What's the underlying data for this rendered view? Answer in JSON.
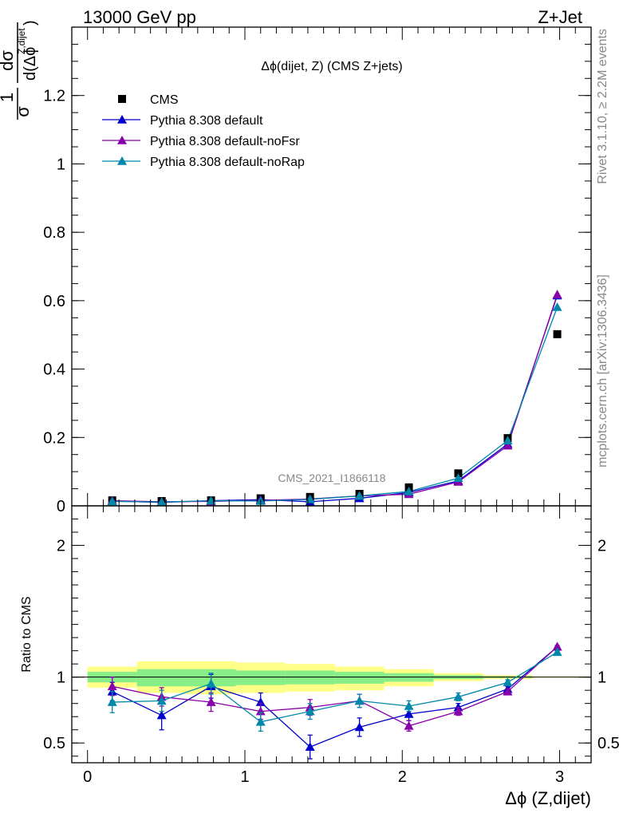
{
  "header": {
    "left": "13000 GeV pp",
    "right": "Z+Jet"
  },
  "side_labels": {
    "rivet": "Rivet 3.1.10, ≥ 2.2M events",
    "mcplots": "mcplots.cern.ch [arXiv:1306.3436]"
  },
  "watermark": "CMS_2021_I1866118",
  "chart_data": [
    {
      "type": "line",
      "title": "Δϕ(dijet, Z) (CMS Z+jets)",
      "xlabel": "Δϕ (Z,dijet)",
      "ylabel": "1/σ dσ/d(Δϕ Z,dijet)",
      "ylabel_parts": {
        "frac_num": "1",
        "frac_den": "σ",
        "deriv_num": "dσ",
        "deriv_den": "d(Δϕ",
        "deriv_sup": "Z,dijet",
        "deriv_close": ")"
      },
      "xlim": [
        -0.1,
        3.2
      ],
      "ylim": [
        0,
        1.4
      ],
      "yticks": [
        0,
        0.2,
        0.4,
        0.6,
        0.8,
        1,
        1.2
      ],
      "ytick_labels": [
        "0",
        "0.2",
        "0.4",
        "0.6",
        "0.8",
        "1",
        "1.2"
      ],
      "legend_position": "top-left",
      "x": [
        0.157,
        0.471,
        0.785,
        1.1,
        1.414,
        1.728,
        2.042,
        2.356,
        2.67,
        2.985
      ],
      "series": [
        {
          "name": "CMS",
          "marker": "square",
          "color": "#000000",
          "values": [
            0.016,
            0.014,
            0.016,
            0.022,
            0.026,
            0.035,
            0.054,
            0.095,
            0.198,
            0.502
          ]
        },
        {
          "name": "Pythia 8.308 default",
          "marker": "triangle",
          "color": "#0000cc",
          "values": [
            0.014,
            0.01,
            0.015,
            0.018,
            0.012,
            0.022,
            0.039,
            0.073,
            0.181,
            0.615
          ]
        },
        {
          "name": "Pythia 8.308 default-noFsr",
          "marker": "triangle",
          "color": "#8800aa",
          "values": [
            0.015,
            0.012,
            0.013,
            0.016,
            0.02,
            0.029,
            0.034,
            0.07,
            0.176,
            0.618
          ]
        },
        {
          "name": "Pythia 8.308 default-noRap",
          "marker": "triangle",
          "color": "#0088aa",
          "values": [
            0.013,
            0.011,
            0.015,
            0.014,
            0.019,
            0.029,
            0.042,
            0.081,
            0.191,
            0.581
          ]
        }
      ]
    },
    {
      "type": "line",
      "ylabel": "Ratio to CMS",
      "xlabel": "Δϕ (Z,dijet)",
      "xlim": [
        -0.1,
        3.2
      ],
      "ylim": [
        0.35,
        2.3
      ],
      "yticks": [
        0.5,
        1,
        2
      ],
      "ytick_labels": [
        "0.5",
        "1",
        "2"
      ],
      "xticks": [
        0,
        1,
        2,
        3
      ],
      "xtick_labels": [
        "0",
        "1",
        "2",
        "3"
      ],
      "bin_edges": [
        0,
        0.314,
        0.628,
        0.942,
        1.257,
        1.571,
        1.885,
        2.199,
        2.513,
        2.827,
        3.2
      ],
      "band_yellow": [
        [
          0.92,
          1.08
        ],
        [
          0.88,
          1.12
        ],
        [
          0.87,
          1.12
        ],
        [
          0.88,
          1.11
        ],
        [
          0.89,
          1.1
        ],
        [
          0.9,
          1.08
        ],
        [
          0.93,
          1.06
        ],
        [
          0.97,
          1.03
        ],
        [
          0.985,
          1.015
        ],
        [
          0.995,
          1.005
        ]
      ],
      "band_green": [
        [
          0.96,
          1.04
        ],
        [
          0.93,
          1.06
        ],
        [
          0.93,
          1.06
        ],
        [
          0.94,
          1.05
        ],
        [
          0.945,
          1.05
        ],
        [
          0.95,
          1.04
        ],
        [
          0.965,
          1.03
        ],
        [
          0.985,
          1.015
        ],
        [
          0.993,
          1.007
        ],
        [
          0.998,
          1.002
        ]
      ],
      "series": [
        {
          "name": "Pythia 8.308 default",
          "color": "#0000cc",
          "values": [
            0.89,
            0.71,
            0.93,
            0.81,
            0.47,
            0.62,
            0.72,
            0.77,
            0.91,
            1.23
          ],
          "errors": [
            0.07,
            0.11,
            0.09,
            0.07,
            0.09,
            0.07,
            0.05,
            0.03,
            0.02,
            0.01
          ]
        },
        {
          "name": "Pythia 8.308 default-noFsr",
          "color": "#8800aa",
          "values": [
            0.93,
            0.85,
            0.81,
            0.74,
            0.77,
            0.82,
            0.63,
            0.74,
            0.89,
            1.23
          ],
          "errors": [
            0.07,
            0.07,
            0.07,
            0.06,
            0.06,
            0.05,
            0.04,
            0.03,
            0.02,
            0.01
          ]
        },
        {
          "name": "Pythia 8.308 default-noRap",
          "color": "#0088aa",
          "values": [
            0.81,
            0.82,
            0.95,
            0.66,
            0.74,
            0.82,
            0.78,
            0.85,
            0.96,
            1.19
          ],
          "errors": [
            0.08,
            0.08,
            0.08,
            0.07,
            0.06,
            0.05,
            0.04,
            0.03,
            0.02,
            0.01
          ]
        }
      ]
    }
  ]
}
